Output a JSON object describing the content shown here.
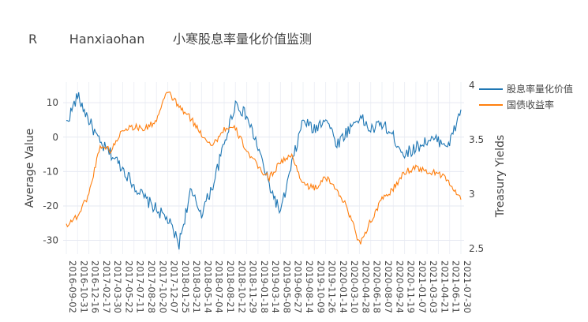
{
  "chart_data": {
    "type": "line",
    "title": "R        Hanxiaohan       小寒股息率量化价值监测",
    "ylabel": "Average   Value",
    "y2label": "Treasury   Yields",
    "ylim": [
      -34,
      16
    ],
    "y2lim": [
      2.45,
      4.03
    ],
    "yticks": [
      10,
      0,
      -10,
      -20,
      -30
    ],
    "y2ticks": [
      4,
      3.5,
      3,
      2.5
    ],
    "y2ticklabels": [
      "4",
      "3.5",
      "3",
      "2.5"
    ],
    "grid": true,
    "legend_position": "top-right",
    "x": [
      "2016-09-02",
      "2016-10-31",
      "2016-12-16",
      "2017-02-17",
      "2017-03-30",
      "2017-05-22",
      "2017-07-11",
      "2017-08-28",
      "2017-10-20",
      "2017-12-07",
      "2018-01-25",
      "2018-03-21",
      "2018-05-14",
      "2018-07-04",
      "2018-08-21",
      "2018-10-12",
      "2018-11-29",
      "2019-01-18",
      "2019-03-14",
      "2019-05-08",
      "2019-06-27",
      "2019-08-14",
      "2019-10-09",
      "2019-11-26",
      "2020-01-14",
      "2020-03-10",
      "2020-04-28",
      "2020-06-18",
      "2020-08-07",
      "2020-09-24",
      "2020-11-19",
      "2021-01-07",
      "2021-03-03",
      "2021-04-21",
      "2021-06-11",
      "2021-07-30"
    ],
    "series": [
      {
        "name": "股息率量化价值",
        "color": "#1f77b4",
        "axis": "y",
        "values": [
          4,
          12,
          5,
          -2,
          -5,
          -9,
          -14,
          -18,
          -21,
          -24,
          -31,
          -16,
          -22,
          -14,
          -2,
          10,
          6,
          -3,
          -14,
          -22,
          -8,
          5,
          2,
          6,
          -2,
          2,
          6,
          2,
          4,
          0,
          -5,
          -3,
          -1,
          -1,
          -2,
          8
        ]
      },
      {
        "name": "国债收益率",
        "color": "#ff7f0e",
        "axis": "y2",
        "values": [
          2.72,
          2.8,
          3.0,
          3.45,
          3.4,
          3.6,
          3.62,
          3.6,
          3.68,
          3.95,
          3.8,
          3.7,
          3.55,
          3.45,
          3.6,
          3.6,
          3.4,
          3.25,
          3.15,
          3.3,
          3.35,
          3.1,
          3.05,
          3.15,
          3.05,
          2.85,
          2.55,
          2.75,
          2.95,
          3.05,
          3.2,
          3.25,
          3.2,
          3.2,
          3.1,
          2.95
        ]
      }
    ]
  }
}
